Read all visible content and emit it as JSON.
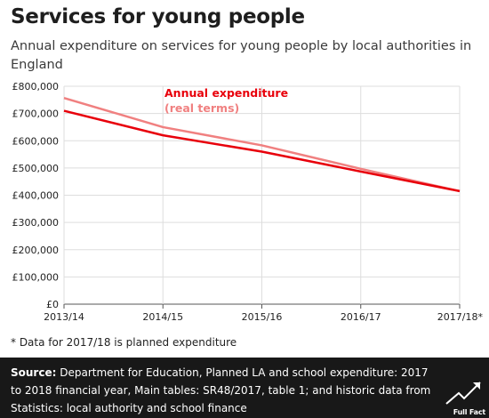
{
  "header": {
    "title": "Services for young people",
    "subtitle": "Annual expenditure on services for young people by local authorities in England"
  },
  "footnote": "* Data for 2017/18 is planned expenditure",
  "footer": {
    "source_label": "Source:",
    "source_text": " Department for Education, Planned LA and school expenditure: 2017 to 2018 financial year, Main tables: SR48/2017, table 1; and historic data from Statistics: local authority and school finance",
    "logo_text": "Full Fact"
  },
  "colors": {
    "nominal": "#e8000b",
    "real": "#f08080",
    "grid": "#dddddd",
    "footer_bg": "#181818"
  },
  "chart_data": {
    "type": "line",
    "title": "Services for young people",
    "categories": [
      "2013/14",
      "2014/15",
      "2015/16",
      "2016/17",
      "2017/18*"
    ],
    "series": [
      {
        "name": "Annual expenditure",
        "values": [
          710000,
          620000,
          560000,
          487000,
          415000
        ],
        "color": "#e8000b"
      },
      {
        "name": "(real terms)",
        "values": [
          757000,
          650000,
          583000,
          497000,
          415000
        ],
        "color": "#f08080"
      }
    ],
    "y_ticks": [
      "£0",
      "£100,000",
      "£200,000",
      "£300,000",
      "£400,000",
      "£500,000",
      "£600,000",
      "£700,000",
      "£800,000"
    ],
    "ylim": [
      0,
      800000
    ],
    "grid": true,
    "legend": [
      "Annual expenditure",
      "(real terms)"
    ]
  }
}
